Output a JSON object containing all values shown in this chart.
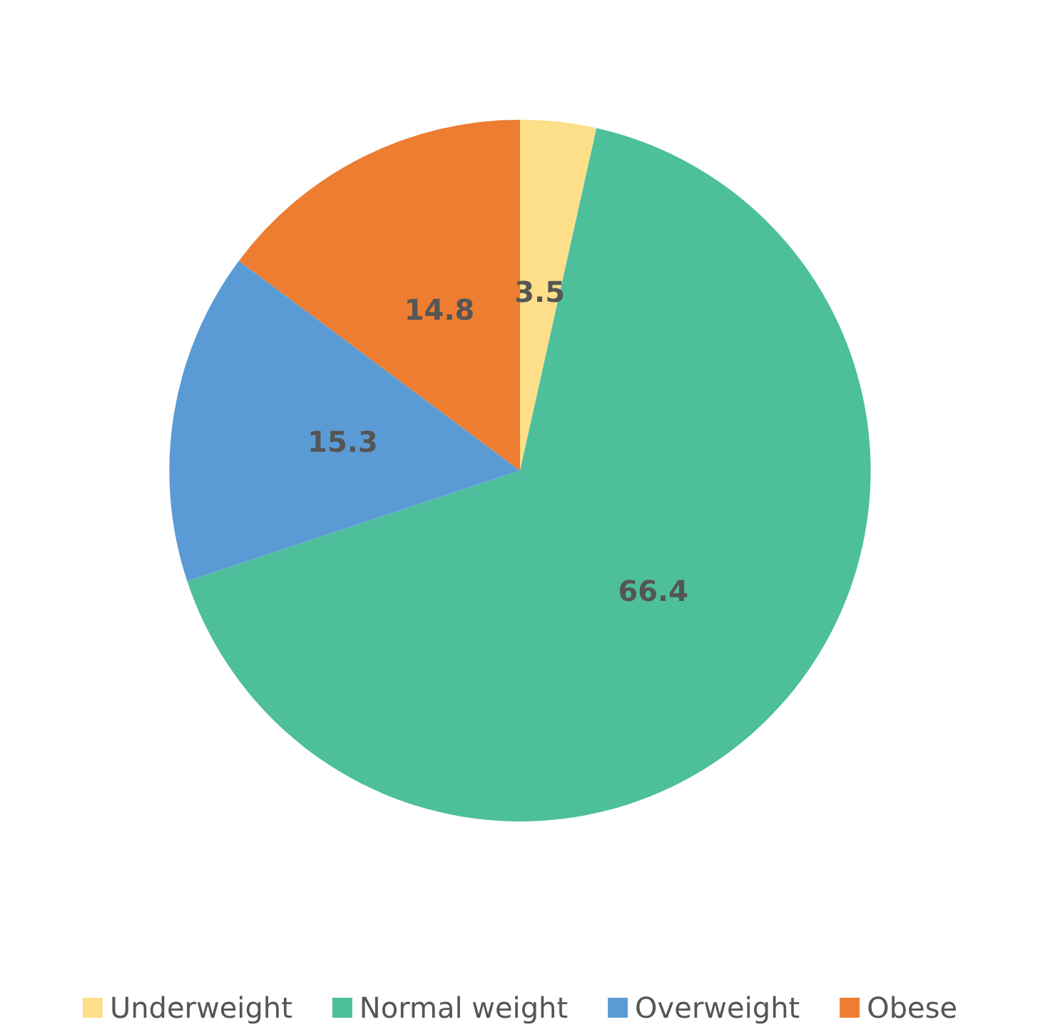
{
  "chart_data": {
    "type": "pie",
    "categories": [
      "Underweight",
      "Normal weight",
      "Overweight",
      "Obese"
    ],
    "values": [
      3.5,
      66.4,
      15.3,
      14.8
    ],
    "colors": [
      "#fddf8a",
      "#4dbf9b",
      "#5b9bd5",
      "#ed7d31"
    ],
    "data_labels": true,
    "legend": "bottom"
  }
}
